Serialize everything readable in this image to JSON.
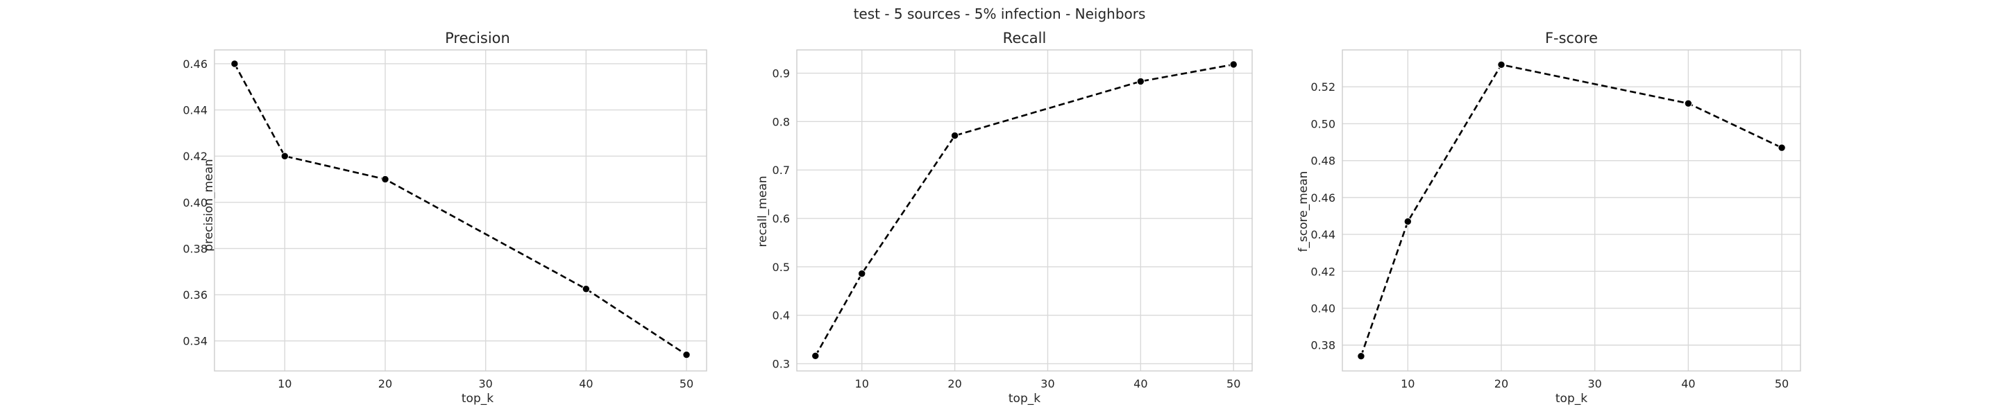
{
  "figure": {
    "suptitle": "test - 5 sources - 5% infection - Neighbors"
  },
  "chart_data": [
    {
      "type": "line",
      "title": "Precision",
      "xlabel": "top_k",
      "ylabel": "precision_mean",
      "x": [
        5,
        10,
        20,
        40,
        50
      ],
      "values": [
        0.46,
        0.42,
        0.41,
        0.3625,
        0.334
      ],
      "xlim": [
        3,
        52
      ],
      "ylim": [
        0.327,
        0.466
      ],
      "xticks": [
        10,
        20,
        30,
        40,
        50
      ],
      "yticks": [
        0.34,
        0.36,
        0.38,
        0.4,
        0.42,
        0.44,
        0.46
      ],
      "ytick_decimals": 2,
      "grid": true,
      "line_style": "dashed",
      "marker": "circle",
      "color": "#000000"
    },
    {
      "type": "line",
      "title": "Recall",
      "xlabel": "top_k",
      "ylabel": "recall_mean",
      "x": [
        5,
        10,
        20,
        40,
        50
      ],
      "values": [
        0.316,
        0.486,
        0.771,
        0.883,
        0.918
      ],
      "xlim": [
        3,
        52
      ],
      "ylim": [
        0.285,
        0.948
      ],
      "xticks": [
        10,
        20,
        30,
        40,
        50
      ],
      "yticks": [
        0.3,
        0.4,
        0.5,
        0.6,
        0.7,
        0.8,
        0.9
      ],
      "ytick_decimals": 1,
      "grid": true,
      "line_style": "dashed",
      "marker": "circle",
      "color": "#000000"
    },
    {
      "type": "line",
      "title": "F-score",
      "xlabel": "top_k",
      "ylabel": "f_score_mean",
      "x": [
        5,
        10,
        20,
        40,
        50
      ],
      "values": [
        0.374,
        0.447,
        0.532,
        0.511,
        0.487
      ],
      "xlim": [
        3,
        52
      ],
      "ylim": [
        0.366,
        0.54
      ],
      "xticks": [
        10,
        20,
        30,
        40,
        50
      ],
      "yticks": [
        0.38,
        0.4,
        0.42,
        0.44,
        0.46,
        0.48,
        0.5,
        0.52
      ],
      "ytick_decimals": 2,
      "grid": true,
      "line_style": "dashed",
      "marker": "circle",
      "color": "#000000"
    }
  ]
}
